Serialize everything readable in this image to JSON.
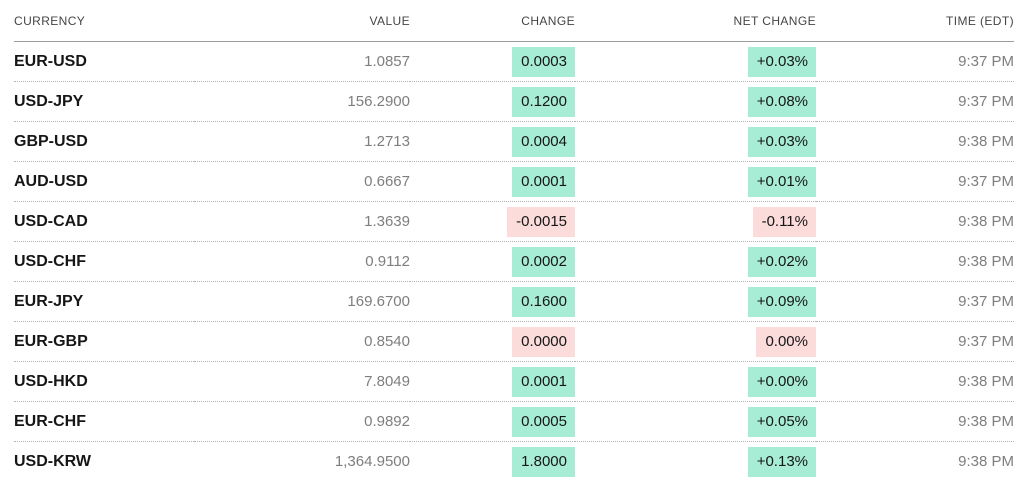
{
  "table": {
    "headers": [
      {
        "label": "CURRENCY"
      },
      {
        "label": "VALUE"
      },
      {
        "label": "CHANGE"
      },
      {
        "label": "NET CHANGE"
      },
      {
        "label": "TIME (EDT)"
      }
    ],
    "rows": [
      {
        "currency": "EUR-USD",
        "value": "1.0857",
        "change": "0.0003",
        "net_change": "+0.03%",
        "time": "9:37 PM",
        "direction": "positive"
      },
      {
        "currency": "USD-JPY",
        "value": "156.2900",
        "change": "0.1200",
        "net_change": "+0.08%",
        "time": "9:37 PM",
        "direction": "positive"
      },
      {
        "currency": "GBP-USD",
        "value": "1.2713",
        "change": "0.0004",
        "net_change": "+0.03%",
        "time": "9:38 PM",
        "direction": "positive"
      },
      {
        "currency": "AUD-USD",
        "value": "0.6667",
        "change": "0.0001",
        "net_change": "+0.01%",
        "time": "9:37 PM",
        "direction": "positive"
      },
      {
        "currency": "USD-CAD",
        "value": "1.3639",
        "change": "-0.0015",
        "net_change": "-0.11%",
        "time": "9:38 PM",
        "direction": "negative"
      },
      {
        "currency": "USD-CHF",
        "value": "0.9112",
        "change": "0.0002",
        "net_change": "+0.02%",
        "time": "9:38 PM",
        "direction": "positive"
      },
      {
        "currency": "EUR-JPY",
        "value": "169.6700",
        "change": "0.1600",
        "net_change": "+0.09%",
        "time": "9:37 PM",
        "direction": "positive"
      },
      {
        "currency": "EUR-GBP",
        "value": "0.8540",
        "change": "0.0000",
        "net_change": "0.00%",
        "time": "9:37 PM",
        "direction": "negative"
      },
      {
        "currency": "USD-HKD",
        "value": "7.8049",
        "change": "0.0001",
        "net_change": "+0.00%",
        "time": "9:38 PM",
        "direction": "positive"
      },
      {
        "currency": "EUR-CHF",
        "value": "0.9892",
        "change": "0.0005",
        "net_change": "+0.05%",
        "time": "9:38 PM",
        "direction": "positive"
      },
      {
        "currency": "USD-KRW",
        "value": "1,364.9500",
        "change": "1.8000",
        "net_change": "+0.13%",
        "time": "9:38 PM",
        "direction": "positive"
      }
    ]
  },
  "colors": {
    "positive_bg": "#a7edd6",
    "negative_bg": "#fcdbdb",
    "ticker_text": "#161616",
    "muted_text": "#7e7e7e",
    "header_text": "#454545"
  }
}
